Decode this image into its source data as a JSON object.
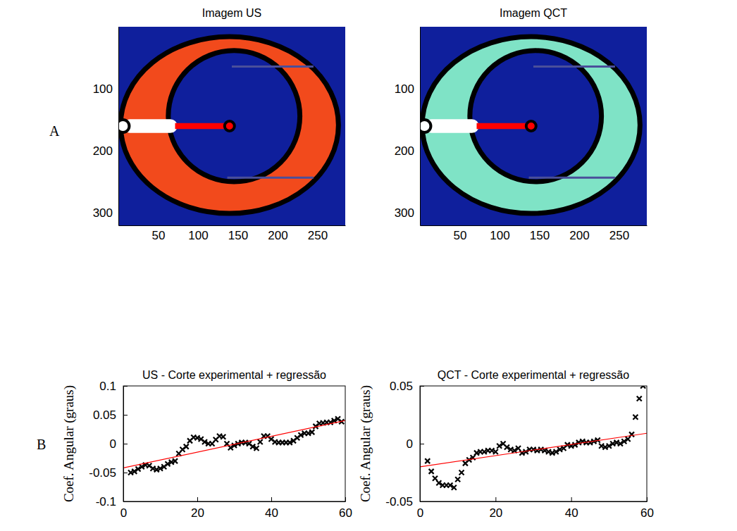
{
  "panel_labels": [
    "A",
    "B"
  ],
  "chart_data": [
    {
      "type": "image",
      "title": "Imagem US",
      "color": "#f24a1c",
      "xlim": [
        0,
        285
      ],
      "ylim": [
        0,
        320
      ],
      "xticks": [
        50,
        100,
        150,
        200,
        250
      ],
      "yticks": [
        100,
        200,
        300
      ]
    },
    {
      "type": "image",
      "title": "Imagem QCT",
      "color": "#7fe3c6",
      "xlim": [
        0,
        285
      ],
      "ylim": [
        0,
        320
      ],
      "xticks": [
        50,
        100,
        150,
        200,
        250
      ],
      "yticks": [
        100,
        200,
        300
      ]
    },
    {
      "type": "scatter",
      "title": "US - Corte experimental + regressão",
      "ylabel": "Coef. Angular (graus)",
      "xlim": [
        0,
        60
      ],
      "ylim": [
        -0.1,
        0.1
      ],
      "xticks": [
        0,
        20,
        40,
        60
      ],
      "yticks": [
        -0.1,
        -0.05,
        0,
        0.05,
        0.1
      ],
      "series": [
        {
          "type": "scatter",
          "marker": "x",
          "color": "#000000",
          "x": [
            2,
            3,
            4,
            5,
            6,
            7,
            8,
            9,
            10,
            11,
            12,
            13,
            14,
            15,
            16,
            17,
            18,
            19,
            20,
            21,
            22,
            23,
            24,
            25,
            26,
            27,
            28,
            29,
            30,
            31,
            32,
            33,
            34,
            35,
            36,
            37,
            38,
            39,
            40,
            41,
            42,
            43,
            44,
            45,
            46,
            47,
            48,
            49,
            50,
            51,
            52,
            53,
            54,
            55,
            56,
            57,
            58,
            59
          ],
          "values": [
            -0.05,
            -0.048,
            -0.044,
            -0.04,
            -0.037,
            -0.038,
            -0.043,
            -0.045,
            -0.043,
            -0.04,
            -0.035,
            -0.032,
            -0.03,
            -0.017,
            -0.01,
            -0.005,
            0.005,
            0.011,
            0.01,
            0.008,
            0.003,
            0,
            0,
            0.007,
            0.013,
            0.012,
            0,
            -0.007,
            -0.003,
            0,
            0.002,
            0.002,
            0,
            -0.005,
            -0.008,
            0.003,
            0.013,
            0.013,
            0.008,
            0.003,
            0.002,
            0.002,
            0.002,
            0.002,
            0.005,
            0.01,
            0.015,
            0.018,
            0.018,
            0.02,
            0.03,
            0.035,
            0.036,
            0.037,
            0.037,
            0.04,
            0.043,
            0.038
          ]
        },
        {
          "type": "line",
          "line_style": "solid",
          "color": "#ff0000",
          "x": [
            0,
            60
          ],
          "values": [
            -0.042,
            0.04
          ]
        }
      ]
    },
    {
      "type": "scatter",
      "title": "QCT - Corte experimental + regressão",
      "ylabel": "Coef. Angular (graus)",
      "xlim": [
        0,
        60
      ],
      "ylim": [
        -0.05,
        0.05
      ],
      "xticks": [
        0,
        20,
        40,
        60
      ],
      "yticks": [
        -0.05,
        0,
        0.05
      ],
      "series": [
        {
          "type": "scatter",
          "marker": "x",
          "color": "#000000",
          "x": [
            2,
            3,
            4,
            5,
            6,
            7,
            8,
            9,
            10,
            11,
            12,
            13,
            14,
            15,
            16,
            17,
            18,
            19,
            20,
            21,
            22,
            23,
            24,
            25,
            26,
            27,
            28,
            29,
            30,
            31,
            32,
            33,
            34,
            35,
            36,
            37,
            38,
            39,
            40,
            41,
            42,
            43,
            44,
            45,
            46,
            47,
            48,
            49,
            50,
            51,
            52,
            53,
            54,
            55,
            56,
            57,
            58,
            59
          ],
          "values": [
            -0.015,
            -0.024,
            -0.03,
            -0.034,
            -0.036,
            -0.036,
            -0.036,
            -0.038,
            -0.031,
            -0.025,
            -0.017,
            -0.014,
            -0.012,
            -0.008,
            -0.007,
            -0.007,
            -0.006,
            -0.006,
            -0.007,
            -0.002,
            0,
            -0.003,
            -0.005,
            -0.006,
            -0.004,
            -0.008,
            -0.007,
            -0.005,
            -0.005,
            -0.006,
            -0.005,
            -0.006,
            -0.007,
            -0.008,
            -0.007,
            -0.005,
            -0.004,
            -0.001,
            -0.002,
            -0.001,
            0.001,
            0.002,
            0.001,
            0.001,
            0.002,
            0.003,
            -0.002,
            -0.003,
            -0.002,
            0,
            0.001,
            0,
            0.002,
            0.004,
            0.008,
            0.023,
            0.039,
            0.05
          ]
        },
        {
          "type": "line",
          "line_style": "solid",
          "color": "#ff0000",
          "x": [
            0,
            60
          ],
          "values": [
            -0.02,
            0.009
          ]
        }
      ]
    }
  ]
}
